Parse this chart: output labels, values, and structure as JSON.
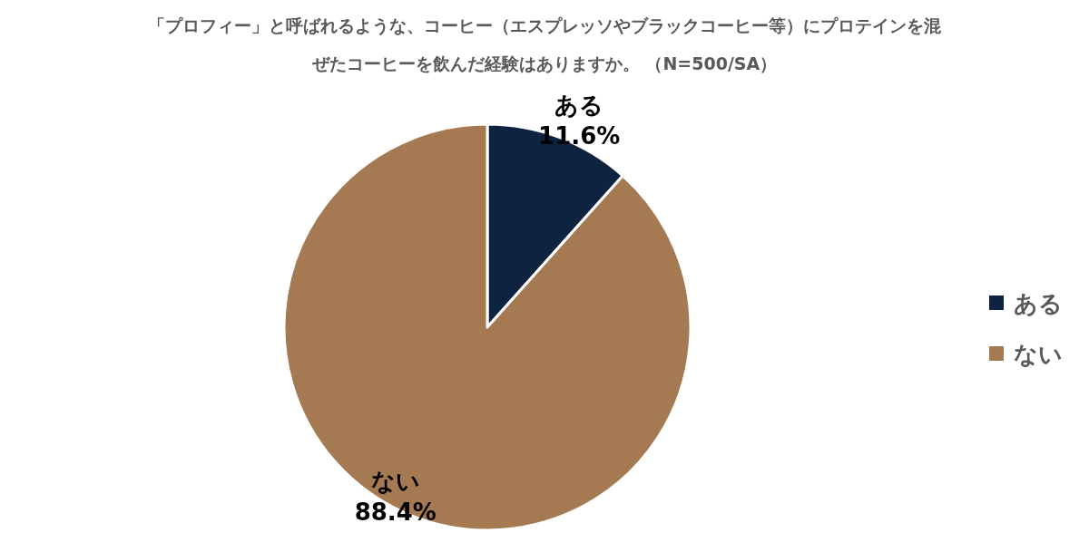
{
  "chart_data": {
    "type": "pie",
    "title": "「プロフィー」と呼ばれるような、コーヒー（エスプレッソやブラックコーヒー等）にプロテインを混ぜたコーヒーを飲んだ経験はありますか。 （N=500/SA）",
    "categories": [
      "ある",
      "ない"
    ],
    "values": [
      11.6,
      88.4
    ],
    "value_labels": [
      "11.6%",
      "88.4%"
    ],
    "colors": [
      "#0e2340",
      "#a57a52"
    ],
    "legend": "right"
  }
}
